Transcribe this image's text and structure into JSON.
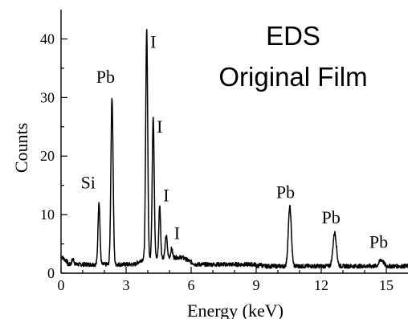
{
  "chart_data": {
    "type": "line",
    "title_lines": [
      "EDS",
      "Original Film"
    ],
    "xlabel": "Energy (keV)",
    "ylabel": "Counts",
    "xlim": [
      0,
      16
    ],
    "ylim": [
      0,
      45
    ],
    "x_ticks": [
      0,
      3,
      6,
      9,
      12,
      15
    ],
    "y_ticks": [
      0,
      10,
      20,
      30,
      40
    ],
    "grid": false,
    "baseline": 1.5,
    "peaks": [
      {
        "label": "Si",
        "x": 1.75,
        "y": 12.2,
        "width": 0.045
      },
      {
        "label": "Pb",
        "x": 2.35,
        "y": 30.1,
        "width": 0.05
      },
      {
        "label": "I",
        "x": 3.95,
        "y": 40.5,
        "width": 0.045
      },
      {
        "label": "I",
        "x": 4.25,
        "y": 25.7,
        "width": 0.045
      },
      {
        "label": "I",
        "x": 4.55,
        "y": 10.4,
        "width": 0.04
      },
      {
        "label": "I",
        "x": 4.85,
        "y": 5.3,
        "width": 0.045
      },
      {
        "label": "Pb",
        "x": 10.55,
        "y": 11.6,
        "width": 0.07
      },
      {
        "label": "Pb",
        "x": 12.62,
        "y": 7.2,
        "width": 0.08
      },
      {
        "label": "Pb",
        "x": 14.77,
        "y": 2.6,
        "width": 0.1
      }
    ],
    "minor_peaks": [
      {
        "x": 0.55,
        "y": 2.4,
        "width": 0.05
      },
      {
        "x": 5.1,
        "y": 3.0,
        "width": 0.04
      },
      {
        "x": 9.2,
        "y": 1.8,
        "width": 0.05
      }
    ],
    "peak_labels": [
      {
        "text": "Si",
        "x": 1.25,
        "y": 14.5
      },
      {
        "text": "Pb",
        "x": 2.05,
        "y": 32.5
      },
      {
        "text": "I",
        "x": 4.25,
        "y": 38.5
      },
      {
        "text": "I",
        "x": 4.55,
        "y": 24.0
      },
      {
        "text": "I",
        "x": 4.85,
        "y": 12.3
      },
      {
        "text": "I",
        "x": 5.35,
        "y": 5.8
      },
      {
        "text": "Pb",
        "x": 10.35,
        "y": 12.8
      },
      {
        "text": "Pb",
        "x": 12.45,
        "y": 8.5
      },
      {
        "text": "Pb",
        "x": 14.65,
        "y": 4.3
      }
    ]
  }
}
